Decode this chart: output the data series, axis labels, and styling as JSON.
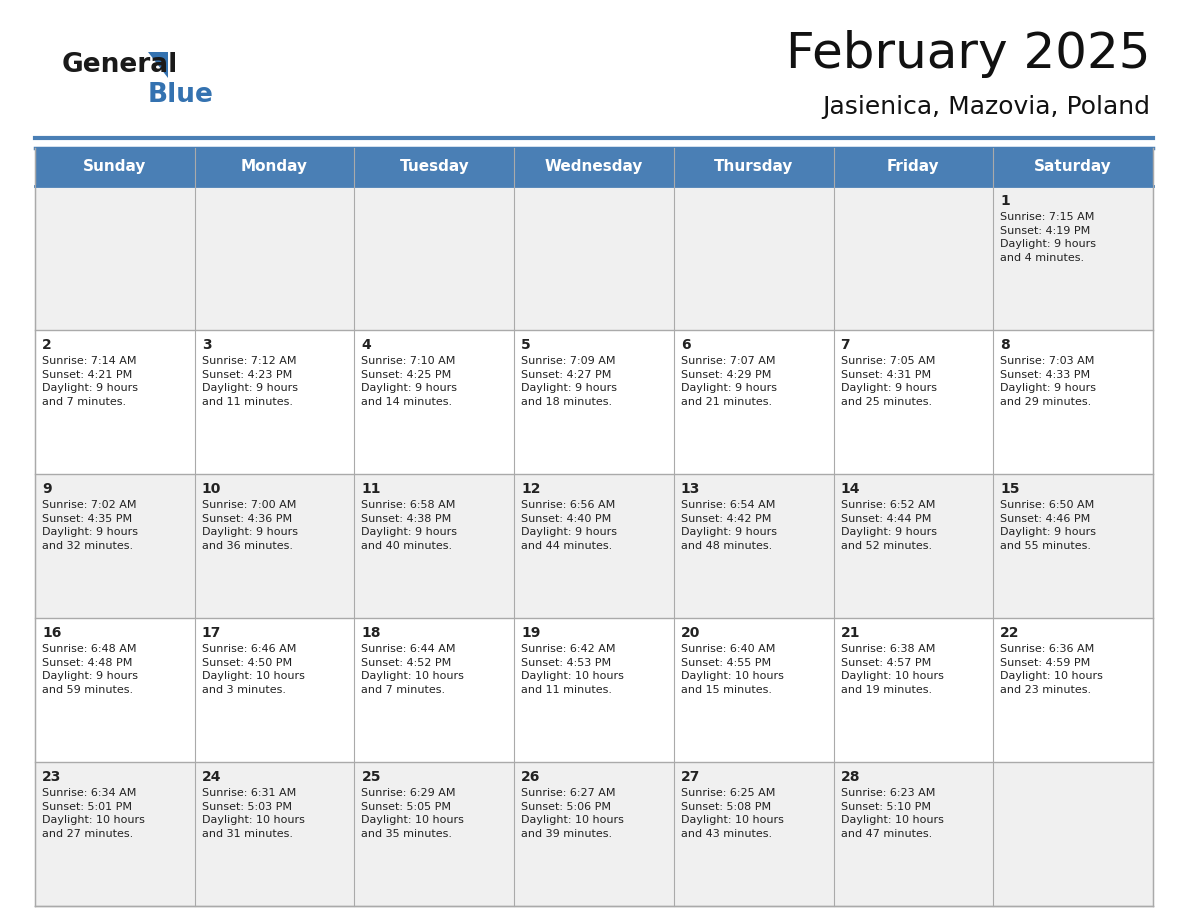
{
  "title": "February 2025",
  "subtitle": "Jasienica, Mazovia, Poland",
  "title_fontsize": 36,
  "subtitle_fontsize": 18,
  "header_color": "#4a7fb5",
  "header_text_color": "#ffffff",
  "day_names": [
    "Sunday",
    "Monday",
    "Tuesday",
    "Wednesday",
    "Thursday",
    "Friday",
    "Saturday"
  ],
  "bg_color": "#ffffff",
  "cell_bg_even": "#f0f0f0",
  "cell_bg_odd": "#ffffff",
  "border_color": "#4a7fb5",
  "grid_color": "#aaaaaa",
  "date_fontsize": 10,
  "info_fontsize": 8,
  "date_color": "#222222",
  "info_color": "#222222",
  "logo_general_color": "#1a1a1a",
  "logo_blue_color": "#3472b0",
  "weeks": [
    [
      {
        "day": null,
        "info": ""
      },
      {
        "day": null,
        "info": ""
      },
      {
        "day": null,
        "info": ""
      },
      {
        "day": null,
        "info": ""
      },
      {
        "day": null,
        "info": ""
      },
      {
        "day": null,
        "info": ""
      },
      {
        "day": 1,
        "info": "Sunrise: 7:15 AM\nSunset: 4:19 PM\nDaylight: 9 hours\nand 4 minutes."
      }
    ],
    [
      {
        "day": 2,
        "info": "Sunrise: 7:14 AM\nSunset: 4:21 PM\nDaylight: 9 hours\nand 7 minutes."
      },
      {
        "day": 3,
        "info": "Sunrise: 7:12 AM\nSunset: 4:23 PM\nDaylight: 9 hours\nand 11 minutes."
      },
      {
        "day": 4,
        "info": "Sunrise: 7:10 AM\nSunset: 4:25 PM\nDaylight: 9 hours\nand 14 minutes."
      },
      {
        "day": 5,
        "info": "Sunrise: 7:09 AM\nSunset: 4:27 PM\nDaylight: 9 hours\nand 18 minutes."
      },
      {
        "day": 6,
        "info": "Sunrise: 7:07 AM\nSunset: 4:29 PM\nDaylight: 9 hours\nand 21 minutes."
      },
      {
        "day": 7,
        "info": "Sunrise: 7:05 AM\nSunset: 4:31 PM\nDaylight: 9 hours\nand 25 minutes."
      },
      {
        "day": 8,
        "info": "Sunrise: 7:03 AM\nSunset: 4:33 PM\nDaylight: 9 hours\nand 29 minutes."
      }
    ],
    [
      {
        "day": 9,
        "info": "Sunrise: 7:02 AM\nSunset: 4:35 PM\nDaylight: 9 hours\nand 32 minutes."
      },
      {
        "day": 10,
        "info": "Sunrise: 7:00 AM\nSunset: 4:36 PM\nDaylight: 9 hours\nand 36 minutes."
      },
      {
        "day": 11,
        "info": "Sunrise: 6:58 AM\nSunset: 4:38 PM\nDaylight: 9 hours\nand 40 minutes."
      },
      {
        "day": 12,
        "info": "Sunrise: 6:56 AM\nSunset: 4:40 PM\nDaylight: 9 hours\nand 44 minutes."
      },
      {
        "day": 13,
        "info": "Sunrise: 6:54 AM\nSunset: 4:42 PM\nDaylight: 9 hours\nand 48 minutes."
      },
      {
        "day": 14,
        "info": "Sunrise: 6:52 AM\nSunset: 4:44 PM\nDaylight: 9 hours\nand 52 minutes."
      },
      {
        "day": 15,
        "info": "Sunrise: 6:50 AM\nSunset: 4:46 PM\nDaylight: 9 hours\nand 55 minutes."
      }
    ],
    [
      {
        "day": 16,
        "info": "Sunrise: 6:48 AM\nSunset: 4:48 PM\nDaylight: 9 hours\nand 59 minutes."
      },
      {
        "day": 17,
        "info": "Sunrise: 6:46 AM\nSunset: 4:50 PM\nDaylight: 10 hours\nand 3 minutes."
      },
      {
        "day": 18,
        "info": "Sunrise: 6:44 AM\nSunset: 4:52 PM\nDaylight: 10 hours\nand 7 minutes."
      },
      {
        "day": 19,
        "info": "Sunrise: 6:42 AM\nSunset: 4:53 PM\nDaylight: 10 hours\nand 11 minutes."
      },
      {
        "day": 20,
        "info": "Sunrise: 6:40 AM\nSunset: 4:55 PM\nDaylight: 10 hours\nand 15 minutes."
      },
      {
        "day": 21,
        "info": "Sunrise: 6:38 AM\nSunset: 4:57 PM\nDaylight: 10 hours\nand 19 minutes."
      },
      {
        "day": 22,
        "info": "Sunrise: 6:36 AM\nSunset: 4:59 PM\nDaylight: 10 hours\nand 23 minutes."
      }
    ],
    [
      {
        "day": 23,
        "info": "Sunrise: 6:34 AM\nSunset: 5:01 PM\nDaylight: 10 hours\nand 27 minutes."
      },
      {
        "day": 24,
        "info": "Sunrise: 6:31 AM\nSunset: 5:03 PM\nDaylight: 10 hours\nand 31 minutes."
      },
      {
        "day": 25,
        "info": "Sunrise: 6:29 AM\nSunset: 5:05 PM\nDaylight: 10 hours\nand 35 minutes."
      },
      {
        "day": 26,
        "info": "Sunrise: 6:27 AM\nSunset: 5:06 PM\nDaylight: 10 hours\nand 39 minutes."
      },
      {
        "day": 27,
        "info": "Sunrise: 6:25 AM\nSunset: 5:08 PM\nDaylight: 10 hours\nand 43 minutes."
      },
      {
        "day": 28,
        "info": "Sunrise: 6:23 AM\nSunset: 5:10 PM\nDaylight: 10 hours\nand 47 minutes."
      },
      {
        "day": null,
        "info": ""
      }
    ]
  ]
}
